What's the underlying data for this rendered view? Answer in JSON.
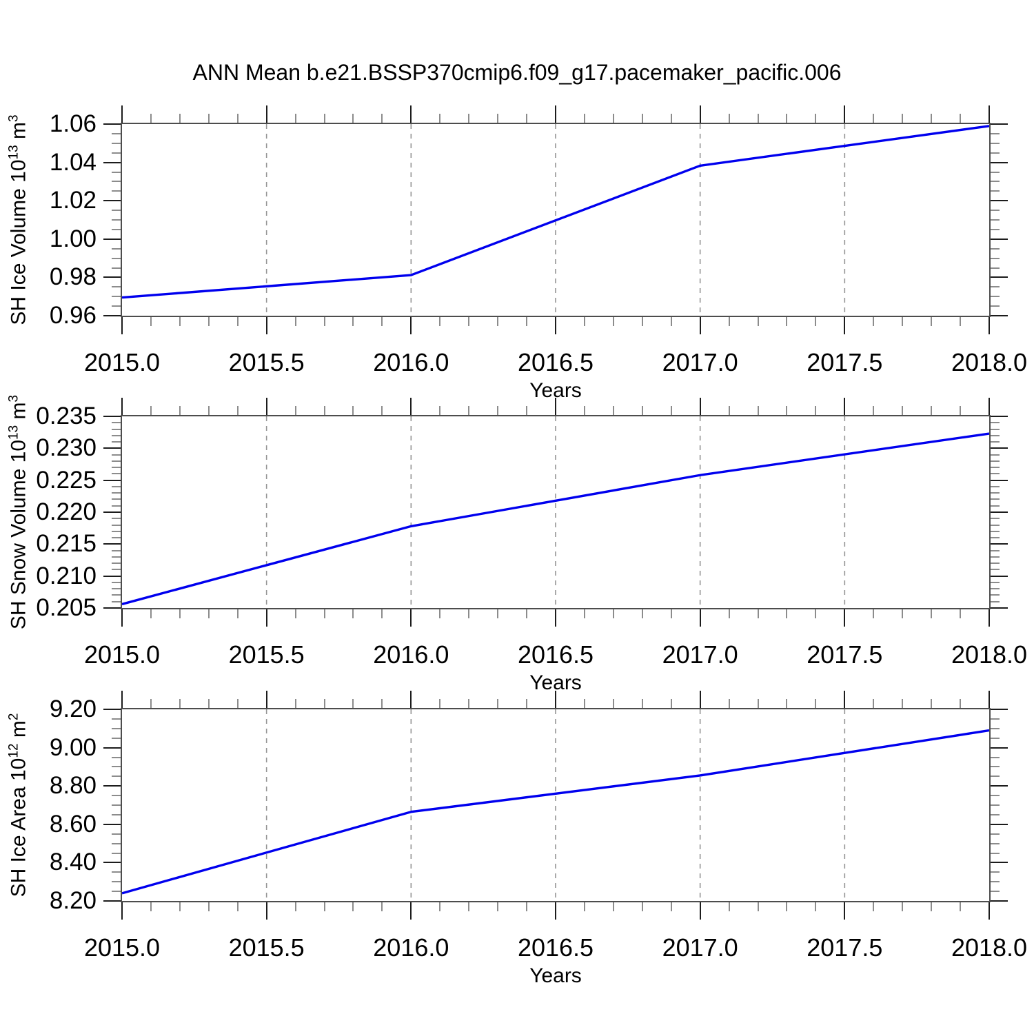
{
  "title": "ANN Mean b.e21.BSSP370cmip6.f09_g17.pacemaker_pacific.006",
  "colors": {
    "line": "#0000ee",
    "grid": "#949494",
    "frame": "#4d4d4d",
    "major_tick": "#1c1c1c",
    "minor_tick": "#8c8c8c"
  },
  "x_axis": {
    "label": "Years",
    "min": 2015.0,
    "max": 2018.0,
    "major_tick_values": [
      2015.0,
      2015.5,
      2016.0,
      2016.5,
      2017.0,
      2017.5,
      2018.0
    ],
    "major_tick_labels": [
      "2015.0",
      "2015.5",
      "2016.0",
      "2016.5",
      "2017.0",
      "2017.5",
      "2018.0"
    ],
    "minor_step": 0.1,
    "gridline_values": [
      2015.5,
      2016.0,
      2016.5,
      2017.0,
      2017.5
    ],
    "grid_style": "dashed"
  },
  "chart_data": [
    {
      "type": "line",
      "title": "SH Ice Volume",
      "xlabel": "Years",
      "ylabel": "SH Ice Volume 10^13 m^3",
      "ylabel_parts": {
        "pre": "SH Ice Volume 10",
        "sup1": "13",
        "mid": " m",
        "sup2": "3"
      },
      "xlim": [
        2015.0,
        2018.0
      ],
      "ylim": [
        0.96,
        1.06
      ],
      "ytick_values": [
        0.96,
        0.98,
        1.0,
        1.02,
        1.04,
        1.06
      ],
      "ytick_labels": [
        "0.96",
        "0.98",
        "1.00",
        "1.02",
        "1.04",
        "1.06"
      ],
      "y_minor_step": 0.005,
      "grid": "vertical-dashed",
      "legend": "none",
      "series": [
        {
          "name": "SH Ice Volume",
          "x": [
            2015.0,
            2016.0,
            2017.0,
            2018.0
          ],
          "y": [
            0.9695,
            0.9812,
            1.0383,
            1.059
          ]
        }
      ]
    },
    {
      "type": "line",
      "title": "SH Snow Volume",
      "xlabel": "Years",
      "ylabel": "SH Snow Volume 10^13 m^3",
      "ylabel_parts": {
        "pre": "SH Snow Volume 10",
        "sup1": "13",
        "mid": " m",
        "sup2": "3"
      },
      "xlim": [
        2015.0,
        2018.0
      ],
      "ylim": [
        0.205,
        0.235
      ],
      "ytick_values": [
        0.205,
        0.21,
        0.215,
        0.22,
        0.225,
        0.23,
        0.235
      ],
      "ytick_labels": [
        "0.205",
        "0.210",
        "0.215",
        "0.220",
        "0.225",
        "0.230",
        "0.235"
      ],
      "y_minor_step": 0.001,
      "grid": "vertical-dashed",
      "legend": "none",
      "series": [
        {
          "name": "SH Snow Volume",
          "x": [
            2015.0,
            2016.0,
            2017.0,
            2018.0
          ],
          "y": [
            0.2056,
            0.2178,
            0.2258,
            0.2323
          ]
        }
      ]
    },
    {
      "type": "line",
      "title": "SH Ice Area",
      "xlabel": "Years",
      "ylabel": "SH Ice Area 10^12 m^2",
      "ylabel_parts": {
        "pre": "SH Ice Area 10",
        "sup1": "12",
        "mid": " m",
        "sup2": "2"
      },
      "xlim": [
        2015.0,
        2018.0
      ],
      "ylim": [
        8.2,
        9.2
      ],
      "ytick_values": [
        8.2,
        8.4,
        8.6,
        8.8,
        9.0,
        9.2
      ],
      "ytick_labels": [
        "8.20",
        "8.40",
        "8.60",
        "8.80",
        "9.00",
        "9.20"
      ],
      "y_minor_step": 0.05,
      "grid": "vertical-dashed",
      "legend": "none",
      "series": [
        {
          "name": "SH Ice Area",
          "x": [
            2015.0,
            2016.0,
            2017.0,
            2018.0
          ],
          "y": [
            8.24,
            8.665,
            8.855,
            9.09
          ]
        }
      ]
    }
  ]
}
